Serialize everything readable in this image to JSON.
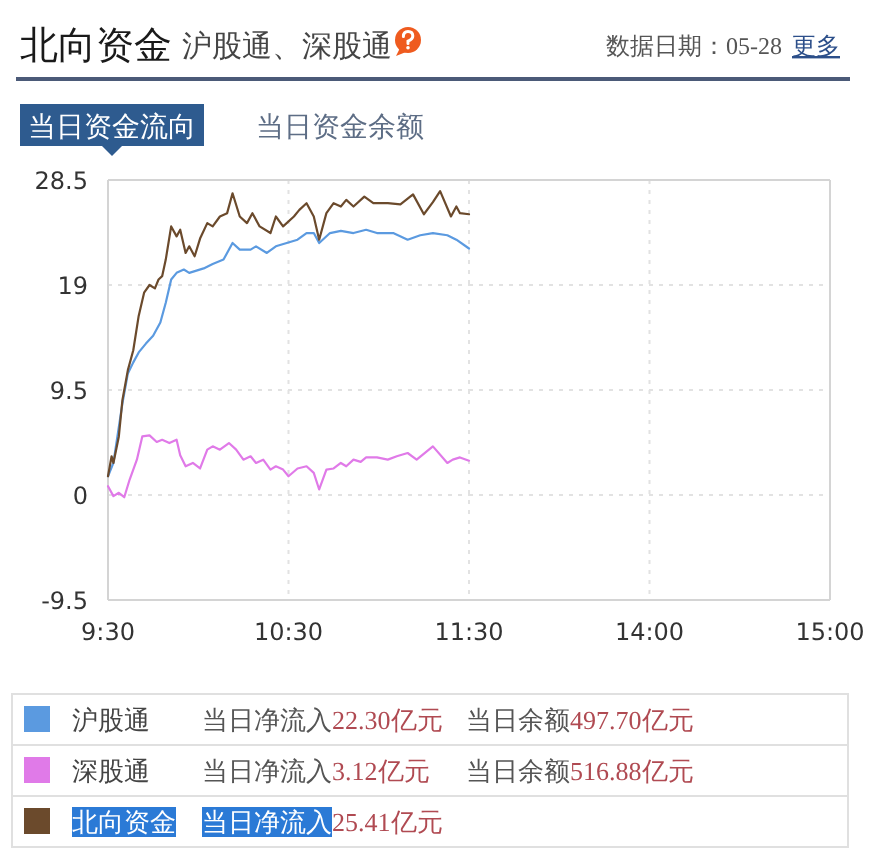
{
  "chart_data": [
    {
      "type": "line",
      "title": "北向资金",
      "subtitle": "沪股通、深股通",
      "annotations": [
        "数据日期：05-28",
        "更多",
        "当日资金流向",
        "当日资金余额",
        "当日净流入22.30亿元",
        "当日余额497.70亿元",
        "当日净流入3.12亿元",
        "当日余额516.88亿元",
        "当日净流入25.41亿元"
      ],
      "xlim": [
        9.5,
        11.5
      ],
      "xticks": [
        {
          "value": 9.5,
          "label": "9:30"
        },
        {
          "value": 10.5,
          "label": "10:30"
        },
        {
          "value": 11.5,
          "label": "11:30"
        }
      ],
      "ylim": [
        -9.5,
        28.5
      ],
      "yticks": [
        -9.5,
        0,
        9.5,
        19,
        28.5
      ],
      "grid": true,
      "legend": "bottom",
      "series": [
        {
          "name": "沪股通",
          "color": "#5b9ae0",
          "x": [
            9.5,
            9.53,
            9.58,
            9.61,
            9.64,
            9.67,
            9.71,
            9.75,
            9.79,
            9.82,
            9.85,
            9.88,
            9.92,
            9.95,
            9.99,
            10.03,
            10.08,
            10.14,
            10.19,
            10.23,
            10.29,
            10.32,
            10.38,
            10.43,
            10.49,
            10.55,
            10.6,
            10.64,
            10.67,
            10.73,
            10.79,
            10.86,
            10.93,
            10.99,
            11.08,
            11.16,
            11.23,
            11.3,
            11.38,
            11.43,
            11.5
          ],
          "values": [
            1.7,
            2.9,
            8.3,
            11.0,
            12.0,
            12.9,
            13.7,
            14.4,
            15.6,
            17.4,
            19.5,
            20.1,
            20.4,
            20.1,
            20.3,
            20.5,
            20.9,
            21.3,
            22.8,
            22.2,
            22.2,
            22.5,
            21.9,
            22.5,
            22.8,
            23.1,
            23.7,
            23.7,
            22.8,
            23.7,
            23.9,
            23.7,
            24.0,
            23.7,
            23.7,
            23.1,
            23.5,
            23.7,
            23.5,
            23.1,
            22.3
          ]
        },
        {
          "name": "深股通",
          "color": "#e07ae8",
          "x": [
            9.5,
            9.53,
            9.56,
            9.59,
            9.62,
            9.66,
            9.69,
            9.73,
            9.77,
            9.8,
            9.84,
            9.88,
            9.9,
            9.93,
            9.97,
            10.01,
            10.05,
            10.08,
            10.12,
            10.17,
            10.21,
            10.25,
            10.29,
            10.32,
            10.36,
            10.4,
            10.43,
            10.47,
            10.5,
            10.55,
            10.6,
            10.64,
            10.67,
            10.71,
            10.75,
            10.79,
            10.82,
            10.86,
            10.9,
            10.93,
            10.99,
            11.05,
            11.1,
            11.16,
            11.21,
            11.3,
            11.38,
            11.41,
            11.45,
            11.5
          ],
          "values": [
            0.8,
            -0.1,
            0.2,
            -0.2,
            1.4,
            3.2,
            5.3,
            5.4,
            4.8,
            5.0,
            4.7,
            5.0,
            3.6,
            2.6,
            2.9,
            2.4,
            4.1,
            4.4,
            4.1,
            4.7,
            4.1,
            3.2,
            3.5,
            2.9,
            3.2,
            2.3,
            2.6,
            2.3,
            1.7,
            2.4,
            2.6,
            2.0,
            0.5,
            2.3,
            2.4,
            2.9,
            2.6,
            3.2,
            3.0,
            3.4,
            3.4,
            3.2,
            3.5,
            3.8,
            3.2,
            4.4,
            2.9,
            3.2,
            3.4,
            3.1
          ]
        },
        {
          "name": "北向资金",
          "color": "#6b4a2c",
          "x": [
            9.5,
            9.52,
            9.53,
            9.56,
            9.58,
            9.61,
            9.64,
            9.67,
            9.7,
            9.73,
            9.76,
            9.78,
            9.8,
            9.82,
            9.85,
            9.88,
            9.9,
            9.93,
            9.95,
            9.98,
            10.01,
            10.05,
            10.08,
            10.12,
            10.16,
            10.19,
            10.23,
            10.27,
            10.3,
            10.34,
            10.4,
            10.43,
            10.47,
            10.53,
            10.56,
            10.6,
            10.64,
            10.67,
            10.71,
            10.75,
            10.79,
            10.82,
            10.86,
            10.92,
            10.97,
            11.05,
            11.12,
            11.19,
            11.25,
            11.3,
            11.34,
            11.4,
            11.43,
            11.45,
            11.5
          ],
          "values": [
            1.7,
            3.5,
            2.9,
            5.3,
            8.6,
            11.3,
            13.1,
            16.2,
            18.3,
            19.0,
            18.7,
            19.5,
            19.8,
            21.3,
            24.3,
            23.4,
            24.0,
            21.9,
            22.5,
            21.6,
            23.2,
            24.6,
            24.3,
            25.2,
            25.5,
            27.3,
            25.2,
            24.6,
            25.5,
            24.3,
            23.7,
            25.2,
            24.3,
            25.2,
            25.8,
            26.4,
            25.2,
            23.1,
            25.5,
            26.4,
            26.1,
            26.7,
            26.1,
            27.0,
            26.4,
            26.4,
            26.3,
            27.2,
            25.4,
            26.5,
            27.5,
            25.2,
            26.1,
            25.5,
            25.4
          ]
        }
      ]
    },
    {
      "type": "line",
      "xlim": [
        13,
        15
      ],
      "xticks": [
        {
          "value": 14,
          "label": "14:00"
        },
        {
          "value": 15,
          "label": "15:00"
        }
      ],
      "ylim": [
        -9.5,
        28.5
      ],
      "yticks": [
        -9.5,
        0,
        9.5,
        19,
        28.5
      ],
      "grid": true,
      "tick_labels": "x"
    }
  ]
}
